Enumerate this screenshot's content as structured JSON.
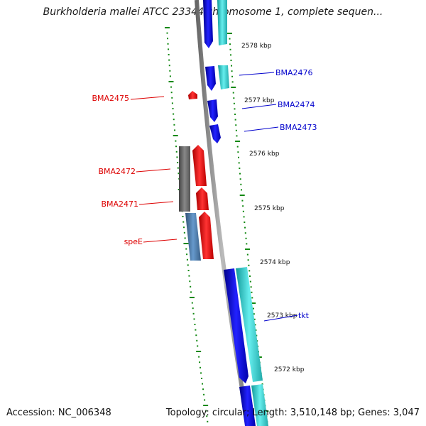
{
  "header": {
    "title": "Burkholderia mallei ATCC 23344 chromosome 1, complete sequen..."
  },
  "footer": {
    "accession": "Accession: NC_006348",
    "stats": "Topology: circular; Length: 3,510,148 bp; Genes: 3,047"
  },
  "scale_labels": [
    "2578 kbp",
    "2577 kbp",
    "2576 kbp",
    "2575 kbp",
    "2574 kbp",
    "2573 kbp",
    "2572 kbp"
  ],
  "gene_labels": {
    "forward": [
      "BMA2476",
      "BMA2474",
      "BMA2473",
      "tkt"
    ],
    "reverse": [
      "BMA2475",
      "BMA2472",
      "BMA2471",
      "speE"
    ]
  },
  "colors": {
    "backbone": "#888888",
    "forward_cds": "#0000ee",
    "forward_gene": "#22cccc",
    "reverse_cds": "#ee0000",
    "reverse_gene_dark": "#555555",
    "reverse_gene_blue": "#4477aa",
    "tick": "#118811",
    "forward_label": "#0000cc",
    "reverse_label": "#dd0000"
  }
}
